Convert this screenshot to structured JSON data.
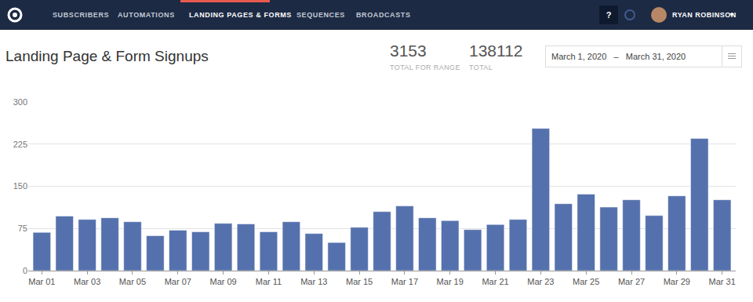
{
  "nav": {
    "items": [
      "SUBSCRIBERS",
      "AUTOMATIONS",
      "LANDING PAGES & FORMS",
      "SEQUENCES",
      "BROADCASTS"
    ],
    "active": "LANDING PAGES & FORMS",
    "help": "?",
    "user": "RYAN ROBINSON"
  },
  "header": {
    "title": "Landing Page & Form Signups",
    "stats": [
      {
        "value": 3153,
        "label": "TOTAL FOR RANGE"
      },
      {
        "value": 138112,
        "label": "TOTAL"
      }
    ],
    "date_range": {
      "start": "March 1, 2020",
      "separator": "–",
      "end": "March 31, 2020"
    }
  },
  "chart_data": {
    "type": "bar",
    "color": "#5571ad",
    "grid": true,
    "categories": [
      "Mar 01",
      null,
      "Mar 03",
      null,
      "Mar 05",
      null,
      "Mar 07",
      null,
      "Mar 09",
      null,
      "Mar 11",
      null,
      "Mar 13",
      null,
      "Mar 15",
      null,
      "Mar 17",
      null,
      "Mar 19",
      null,
      "Mar 21",
      null,
      "Mar 23",
      null,
      "Mar 25",
      null,
      "Mar 27",
      null,
      "Mar 29",
      null,
      "Mar 31"
    ],
    "values": [
      68,
      97,
      91,
      94,
      87,
      62,
      72,
      69,
      84,
      83,
      69,
      87,
      66,
      50,
      77,
      105,
      115,
      94,
      89,
      73,
      82,
      91,
      253,
      119,
      136,
      113,
      126,
      98,
      133,
      235,
      126
    ],
    "ylim": [
      0,
      300
    ],
    "yticks": [
      0,
      75,
      150,
      225,
      300
    ]
  }
}
